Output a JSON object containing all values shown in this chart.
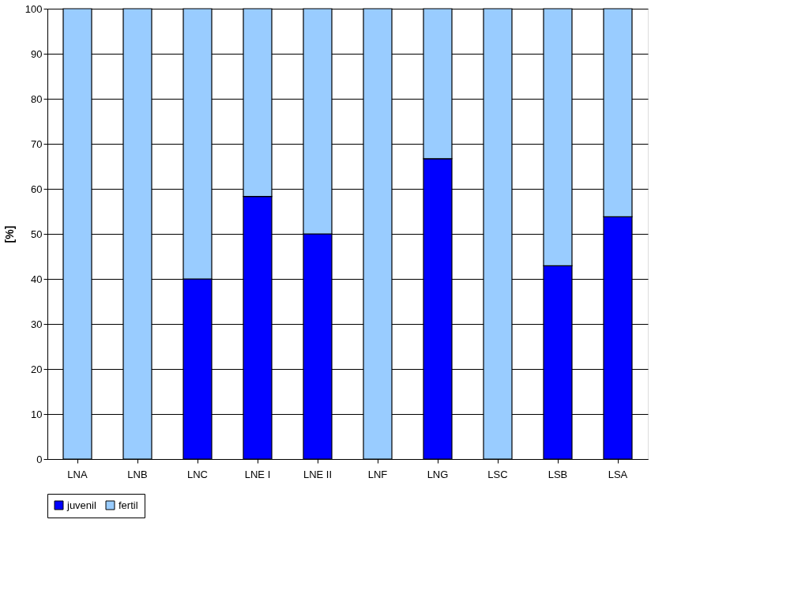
{
  "chart_data": {
    "type": "bar",
    "stacked": true,
    "ylabel": "[%]",
    "categories": [
      "LNA",
      "LNB",
      "LNC",
      "LNE I",
      "LNE II",
      "LNF",
      "LNG",
      "LSC",
      "LSB",
      "LSA"
    ],
    "series": [
      {
        "name": "juvenil",
        "color": "#0000ff",
        "values": [
          0,
          0,
          40,
          58.3,
          50,
          0,
          66.7,
          0,
          42.9,
          53.8
        ]
      },
      {
        "name": "fertil",
        "color": "#99ccff",
        "values": [
          100,
          100,
          60,
          41.7,
          50,
          100,
          33.3,
          100,
          57.1,
          46.2
        ]
      }
    ],
    "ylim": [
      0,
      100
    ],
    "yticks": [
      0,
      10,
      20,
      30,
      40,
      50,
      60,
      70,
      80,
      90,
      100
    ],
    "grid": "y",
    "legend": "bottom"
  }
}
